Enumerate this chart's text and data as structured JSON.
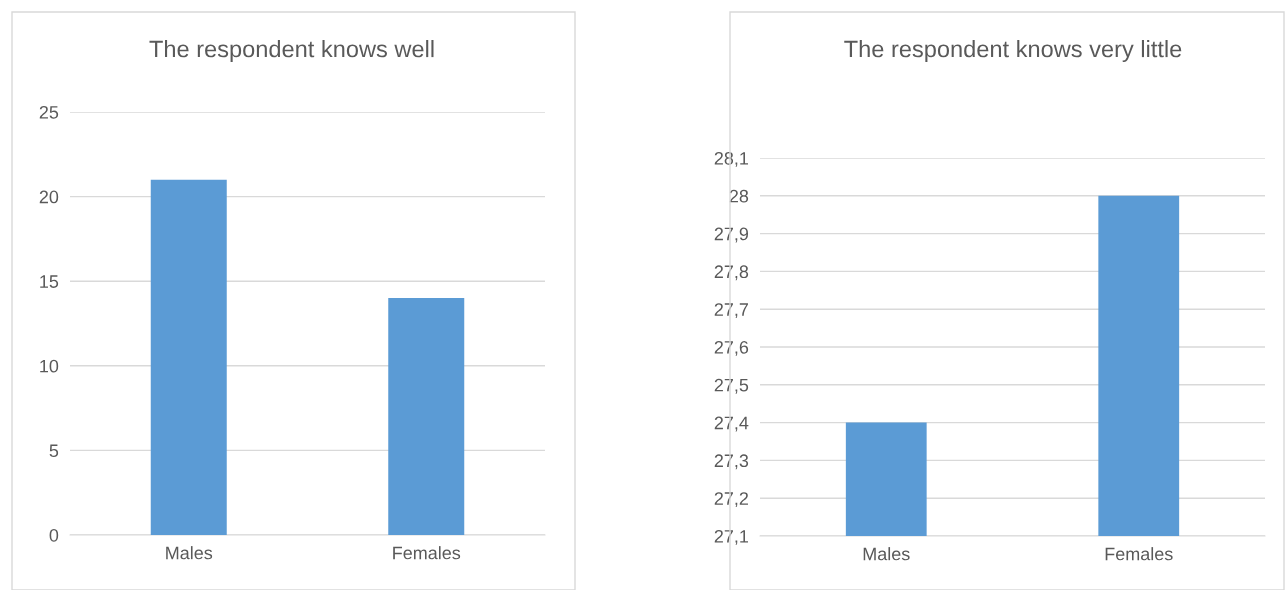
{
  "chart_data": [
    {
      "type": "bar",
      "title": "The respondent knows well",
      "categories": [
        "Males",
        "Females"
      ],
      "values": [
        21,
        14
      ],
      "color": "#5b9bd5",
      "ylim": [
        0,
        25
      ],
      "yticks": [
        0,
        5,
        10,
        15,
        20,
        25
      ],
      "grid": "y"
    },
    {
      "type": "bar",
      "title": "The respondent knows very little",
      "categories": [
        "Males",
        "Females"
      ],
      "values": [
        27.4,
        28
      ],
      "color": "#5b9bd5",
      "ylim": [
        27.1,
        28.1
      ],
      "yticks": [
        {
          "value": 27.1,
          "label": "27,1"
        },
        {
          "value": 27.2,
          "label": "27,2"
        },
        {
          "value": 27.3,
          "label": "27,3"
        },
        {
          "value": 27.4,
          "label": "27,4"
        },
        {
          "value": 27.5,
          "label": "27,5"
        },
        {
          "value": 27.6,
          "label": "27,6"
        },
        {
          "value": 27.7,
          "label": "27,7"
        },
        {
          "value": 27.8,
          "label": "27,8"
        },
        {
          "value": 27.9,
          "label": "27,9"
        },
        {
          "value": 28,
          "label": "28"
        },
        {
          "value": 28.1,
          "label": "28,1"
        }
      ],
      "grid": "y"
    }
  ]
}
